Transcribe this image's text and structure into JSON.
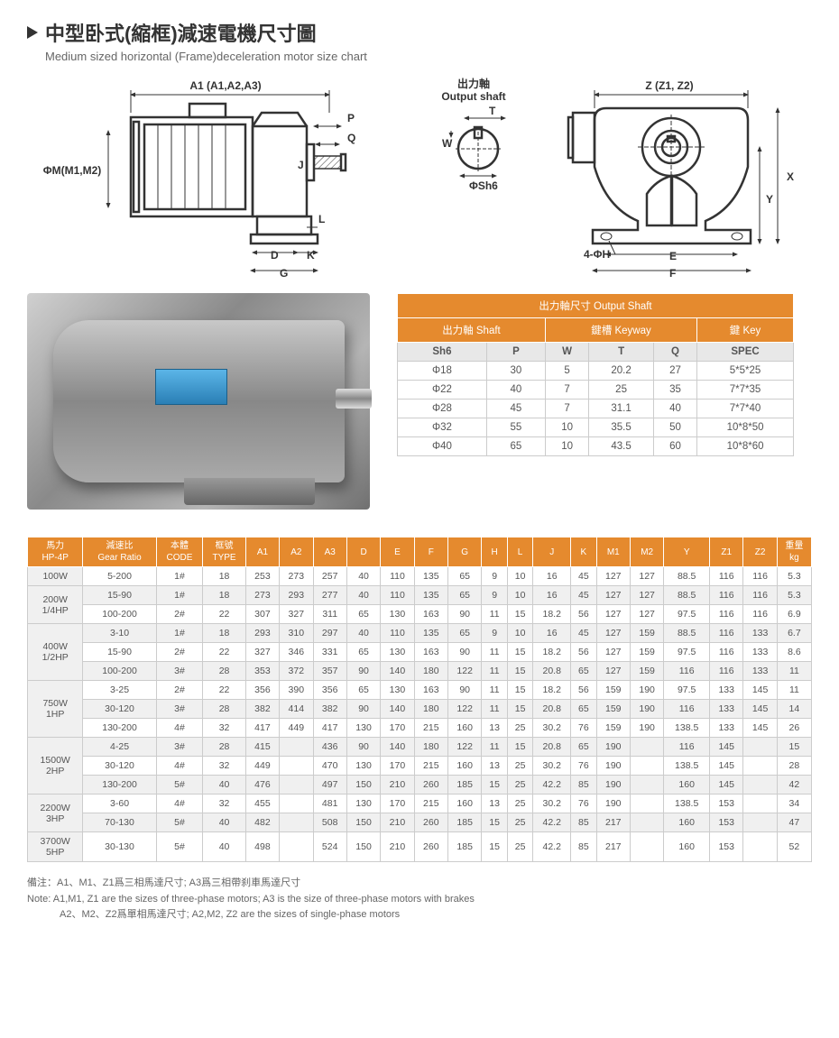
{
  "header": {
    "title_cn": "中型卧式(縮框)減速電機尺寸圖",
    "title_en": "Medium sized horizontal (Frame)deceleration motor size chart"
  },
  "diagram": {
    "labels": {
      "a1": "A1 (A1,A2,A3)",
      "m": "ΦM(M1,M2)",
      "output_cn": "出力軸",
      "output_en": "Output shaft",
      "p": "P",
      "q": "Q",
      "j": "J",
      "l": "L",
      "d": "D",
      "k": "K",
      "g": "G",
      "t": "T",
      "w": "W",
      "sh6": "ΦSh6",
      "z": "Z (Z1, Z2)",
      "x": "X",
      "y": "Y",
      "e": "E",
      "f": "F",
      "h4": "4-ΦH"
    }
  },
  "shaft_table": {
    "title": "出力軸尺寸 Output Shaft",
    "group_headers": [
      "出力軸 Shaft",
      "鍵槽 Keyway",
      "鍵 Key"
    ],
    "col_headers": [
      "Sh6",
      "P",
      "W",
      "T",
      "Q",
      "SPEC"
    ],
    "rows": [
      [
        "Φ18",
        "30",
        "5",
        "20.2",
        "27",
        "5*5*25"
      ],
      [
        "Φ22",
        "40",
        "7",
        "25",
        "35",
        "7*7*35"
      ],
      [
        "Φ28",
        "45",
        "7",
        "31.1",
        "40",
        "7*7*40"
      ],
      [
        "Φ32",
        "55",
        "10",
        "35.5",
        "50",
        "10*8*50"
      ],
      [
        "Φ40",
        "65",
        "10",
        "43.5",
        "60",
        "10*8*60"
      ]
    ]
  },
  "main_table": {
    "headers": [
      "馬力\nHP-4P",
      "減速比\nGear Ratio",
      "本體\nCODE",
      "框號\nTYPE",
      "A1",
      "A2",
      "A3",
      "D",
      "E",
      "F",
      "G",
      "H",
      "L",
      "J",
      "K",
      "M1",
      "M2",
      "Y",
      "Z1",
      "Z2",
      "重量\nkg"
    ],
    "rows": [
      {
        "hp": "100W",
        "rowspan": 1,
        "data": [
          [
            "5-200",
            "1#",
            "18",
            "253",
            "273",
            "257",
            "40",
            "110",
            "135",
            "65",
            "9",
            "10",
            "16",
            "45",
            "127",
            "127",
            "88.5",
            "116",
            "116",
            "5.3"
          ]
        ]
      },
      {
        "hp": "200W\n1/4HP",
        "rowspan": 2,
        "data": [
          [
            "15-90",
            "1#",
            "18",
            "273",
            "293",
            "277",
            "40",
            "110",
            "135",
            "65",
            "9",
            "10",
            "16",
            "45",
            "127",
            "127",
            "88.5",
            "116",
            "116",
            "5.3"
          ],
          [
            "100-200",
            "2#",
            "22",
            "307",
            "327",
            "311",
            "65",
            "130",
            "163",
            "90",
            "11",
            "15",
            "18.2",
            "56",
            "127",
            "127",
            "97.5",
            "116",
            "116",
            "6.9"
          ]
        ]
      },
      {
        "hp": "400W\n1/2HP",
        "rowspan": 3,
        "data": [
          [
            "3-10",
            "1#",
            "18",
            "293",
            "310",
            "297",
            "40",
            "110",
            "135",
            "65",
            "9",
            "10",
            "16",
            "45",
            "127",
            "159",
            "88.5",
            "116",
            "133",
            "6.7"
          ],
          [
            "15-90",
            "2#",
            "22",
            "327",
            "346",
            "331",
            "65",
            "130",
            "163",
            "90",
            "11",
            "15",
            "18.2",
            "56",
            "127",
            "159",
            "97.5",
            "116",
            "133",
            "8.6"
          ],
          [
            "100-200",
            "3#",
            "28",
            "353",
            "372",
            "357",
            "90",
            "140",
            "180",
            "122",
            "11",
            "15",
            "20.8",
            "65",
            "127",
            "159",
            "116",
            "116",
            "133",
            "11"
          ]
        ]
      },
      {
        "hp": "750W\n1HP",
        "rowspan": 3,
        "data": [
          [
            "3-25",
            "2#",
            "22",
            "356",
            "390",
            "356",
            "65",
            "130",
            "163",
            "90",
            "11",
            "15",
            "18.2",
            "56",
            "159",
            "190",
            "97.5",
            "133",
            "145",
            "11"
          ],
          [
            "30-120",
            "3#",
            "28",
            "382",
            "414",
            "382",
            "90",
            "140",
            "180",
            "122",
            "11",
            "15",
            "20.8",
            "65",
            "159",
            "190",
            "116",
            "133",
            "145",
            "14"
          ],
          [
            "130-200",
            "4#",
            "32",
            "417",
            "449",
            "417",
            "130",
            "170",
            "215",
            "160",
            "13",
            "25",
            "30.2",
            "76",
            "159",
            "190",
            "138.5",
            "133",
            "145",
            "26"
          ]
        ]
      },
      {
        "hp": "1500W\n2HP",
        "rowspan": 3,
        "data": [
          [
            "4-25",
            "3#",
            "28",
            "415",
            "",
            "436",
            "90",
            "140",
            "180",
            "122",
            "11",
            "15",
            "20.8",
            "65",
            "190",
            "",
            "116",
            "145",
            "",
            "15"
          ],
          [
            "30-120",
            "4#",
            "32",
            "449",
            "",
            "470",
            "130",
            "170",
            "215",
            "160",
            "13",
            "25",
            "30.2",
            "76",
            "190",
            "",
            "138.5",
            "145",
            "",
            "28"
          ],
          [
            "130-200",
            "5#",
            "40",
            "476",
            "",
            "497",
            "150",
            "210",
            "260",
            "185",
            "15",
            "25",
            "42.2",
            "85",
            "190",
            "",
            "160",
            "145",
            "",
            "42"
          ]
        ]
      },
      {
        "hp": "2200W\n3HP",
        "rowspan": 2,
        "data": [
          [
            "3-60",
            "4#",
            "32",
            "455",
            "",
            "481",
            "130",
            "170",
            "215",
            "160",
            "13",
            "25",
            "30.2",
            "76",
            "190",
            "",
            "138.5",
            "153",
            "",
            "34"
          ],
          [
            "70-130",
            "5#",
            "40",
            "482",
            "",
            "508",
            "150",
            "210",
            "260",
            "185",
            "15",
            "25",
            "42.2",
            "85",
            "217",
            "",
            "160",
            "153",
            "",
            "47"
          ]
        ]
      },
      {
        "hp": "3700W\n5HP",
        "rowspan": 1,
        "data": [
          [
            "30-130",
            "5#",
            "40",
            "498",
            "",
            "524",
            "150",
            "210",
            "260",
            "185",
            "15",
            "25",
            "42.2",
            "85",
            "217",
            "",
            "160",
            "153",
            "",
            "52"
          ]
        ]
      }
    ]
  },
  "notes": {
    "line1": "備注：A1、M1、Z1爲三相馬達尺寸; A3爲三相帶刹車馬達尺寸",
    "line2": "Note: A1,M1, Z1 are the sizes of three-phase motors; A3 is the size of three-phase motors with brakes",
    "line3": "A2、M2、Z2爲單相馬達尺寸; A2,M2, Z2 are the sizes of single-phase motors"
  },
  "colors": {
    "orange": "#e58a2e",
    "gray_bg": "#f0f0f0",
    "border": "#cccccc",
    "text": "#555555"
  }
}
